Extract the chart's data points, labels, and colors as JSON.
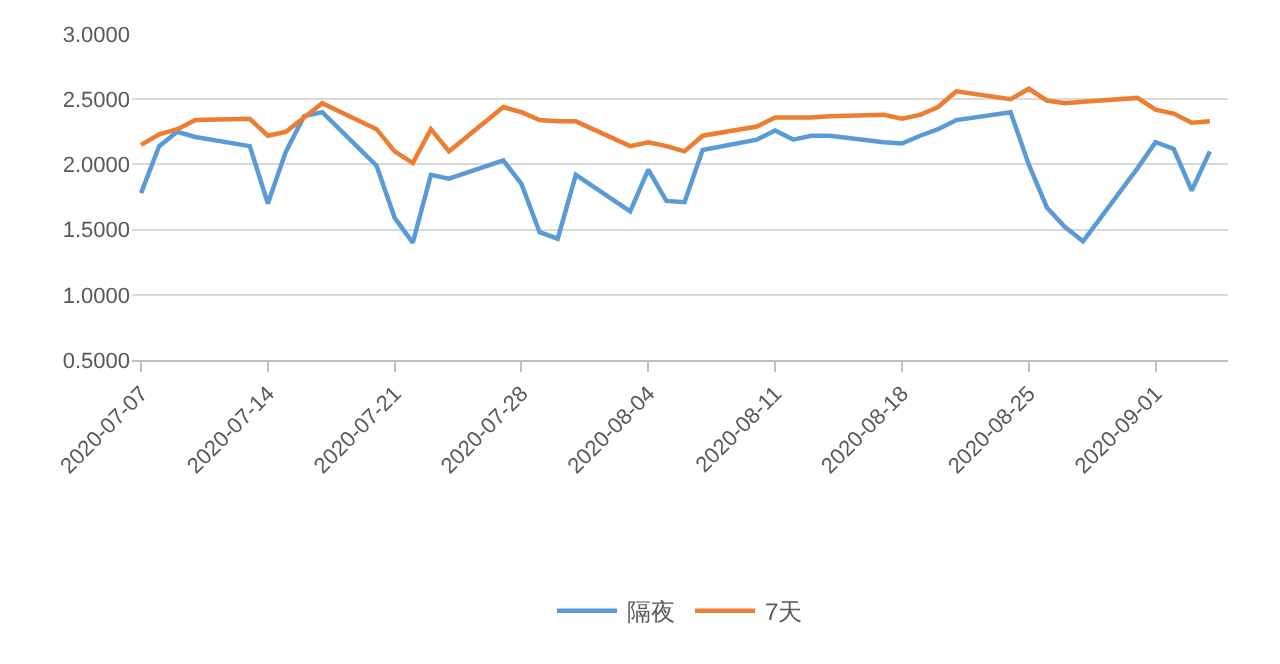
{
  "chart_data": {
    "type": "line",
    "x": [
      "2020-07-07",
      "2020-07-08",
      "2020-07-09",
      "2020-07-10",
      "2020-07-13",
      "2020-07-14",
      "2020-07-15",
      "2020-07-16",
      "2020-07-17",
      "2020-07-20",
      "2020-07-21",
      "2020-07-22",
      "2020-07-23",
      "2020-07-24",
      "2020-07-27",
      "2020-07-28",
      "2020-07-29",
      "2020-07-30",
      "2020-07-31",
      "2020-08-03",
      "2020-08-04",
      "2020-08-05",
      "2020-08-06",
      "2020-08-07",
      "2020-08-10",
      "2020-08-11",
      "2020-08-12",
      "2020-08-13",
      "2020-08-14",
      "2020-08-17",
      "2020-08-18",
      "2020-08-19",
      "2020-08-20",
      "2020-08-21",
      "2020-08-24",
      "2020-08-25",
      "2020-08-26",
      "2020-08-27",
      "2020-08-28",
      "2020-08-31",
      "2020-09-01",
      "2020-09-02",
      "2020-09-03",
      "2020-09-04"
    ],
    "series": [
      {
        "name": "隔夜",
        "color": "#5b9bd5",
        "values": [
          1.78,
          2.14,
          2.25,
          2.21,
          2.14,
          1.7,
          2.1,
          2.37,
          2.4,
          1.99,
          1.59,
          1.4,
          1.92,
          1.89,
          2.03,
          1.85,
          1.48,
          1.43,
          1.92,
          1.64,
          1.96,
          1.72,
          1.71,
          2.11,
          2.19,
          2.26,
          2.19,
          2.22,
          2.22,
          2.17,
          2.16,
          2.22,
          2.27,
          2.34,
          2.4,
          2.0,
          1.67,
          1.52,
          1.41,
          1.97,
          2.17,
          2.12,
          1.8,
          2.1
        ]
      },
      {
        "name": "7天",
        "color": "#ed7d31",
        "values": [
          2.15,
          2.23,
          2.27,
          2.34,
          2.35,
          2.22,
          2.25,
          2.36,
          2.47,
          2.27,
          2.1,
          2.01,
          2.27,
          2.1,
          2.44,
          2.4,
          2.34,
          2.33,
          2.33,
          2.14,
          2.17,
          2.14,
          2.1,
          2.22,
          2.29,
          2.36,
          2.36,
          2.36,
          2.37,
          2.38,
          2.35,
          2.38,
          2.44,
          2.56,
          2.5,
          2.58,
          2.49,
          2.47,
          2.48,
          2.51,
          2.42,
          2.39,
          2.32,
          2.33
        ]
      }
    ],
    "xlim": [
      "2020-07-06T12:00",
      "2020-09-05T00:00"
    ],
    "xticks": [
      "2020-07-07",
      "2020-07-14",
      "2020-07-21",
      "2020-07-28",
      "2020-08-04",
      "2020-08-11",
      "2020-08-18",
      "2020-08-25",
      "2020-09-01"
    ],
    "ylim": [
      0.5,
      3
    ],
    "yticks": [
      {
        "value": 0.5,
        "label": "0.5000"
      },
      {
        "value": 1,
        "label": "1.0000"
      },
      {
        "value": 1.5,
        "label": "1.5000"
      },
      {
        "value": 2,
        "label": "2.0000"
      },
      {
        "value": 2.5,
        "label": "2.5000"
      },
      {
        "value": 3,
        "label": "3.0000"
      }
    ],
    "grid": "y",
    "legend": "bottom",
    "marker": "none",
    "line_style": "solid"
  }
}
